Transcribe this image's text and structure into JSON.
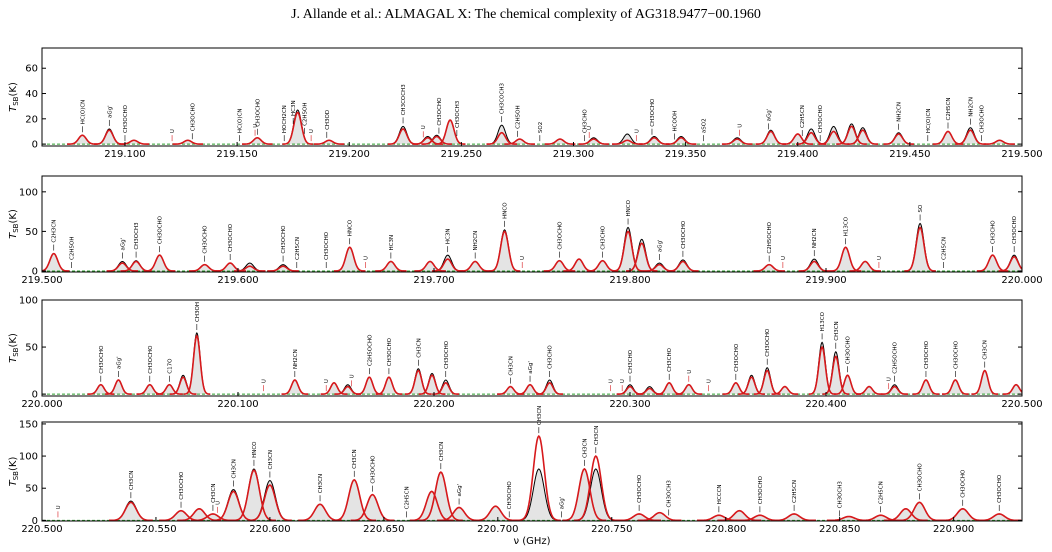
{
  "header": {
    "title": "J. Allande et al.: ALMAGAL X: The chemical complexity of AG318.9477−00.1960"
  },
  "chart_data": [
    {
      "type": "spectrum",
      "ylabel": {
        "symbol": "T",
        "subscript": "SB",
        "unit": "(K)"
      },
      "xlim": [
        219.063,
        219.5
      ],
      "ylim": [
        -1.5,
        76
      ],
      "yticks": [
        0,
        20,
        40,
        60
      ],
      "xticks": [
        {
          "value": 219.1,
          "label": "219.100"
        },
        {
          "value": 219.15,
          "label": "219.150"
        },
        {
          "value": 219.2,
          "label": "219.200"
        },
        {
          "value": 219.25,
          "label": "219.250"
        },
        {
          "value": 219.3,
          "label": "219.300"
        },
        {
          "value": 219.35,
          "label": "219.350"
        },
        {
          "value": 219.4,
          "label": "219.400"
        },
        {
          "value": 219.45,
          "label": "219.450"
        },
        {
          "value": 219.5,
          "label": "219.500"
        }
      ],
      "fill": "#e4e4e4",
      "baseline_color": "#2ca02c",
      "x": [
        219.081,
        219.093,
        219.104,
        219.128,
        219.159,
        219.177,
        219.191,
        219.224,
        219.235,
        219.239,
        219.245,
        219.268,
        219.276,
        219.294,
        219.309,
        219.324,
        219.336,
        219.348,
        219.373,
        219.388,
        219.4,
        219.406,
        219.416,
        219.424,
        219.429,
        219.445,
        219.467,
        219.477,
        219.49
      ],
      "series": [
        {
          "color": "#000000",
          "values": [
            7,
            12,
            3,
            3,
            5,
            27,
            3,
            14,
            6,
            7,
            19,
            15,
            4,
            4,
            5,
            8,
            6,
            6,
            5,
            11,
            8,
            12,
            14,
            16,
            13,
            9,
            10,
            13,
            3
          ]
        },
        {
          "color": "#d7191c",
          "values": [
            7,
            11,
            3,
            3,
            5,
            25,
            3,
            12,
            5,
            6,
            19,
            9,
            4,
            4,
            4,
            3,
            5,
            5,
            4,
            10,
            8,
            9,
            10,
            14,
            11,
            8,
            10,
            11,
            3
          ]
        }
      ],
      "annotations": [
        {
          "x": 219.081,
          "text": "HC(O)CN"
        },
        {
          "x": 219.093,
          "text": "aGg'"
        },
        {
          "x": 219.1,
          "text": "CH3OCHO"
        },
        {
          "x": 219.13,
          "text": "CH3OCHO"
        },
        {
          "x": 219.151,
          "text": "HC(O)CN"
        },
        {
          "x": 219.159,
          "text": "CH3OCHO"
        },
        {
          "x": 219.171,
          "text": "HOCH2CN"
        },
        {
          "x": 219.175,
          "text": "HC3N"
        },
        {
          "x": 219.18,
          "text": "C2H5OH"
        },
        {
          "x": 219.19,
          "text": "CH3OD"
        },
        {
          "x": 219.224,
          "text": "CH3COCH3"
        },
        {
          "x": 219.24,
          "text": "CH3OCHO"
        },
        {
          "x": 219.248,
          "text": "CH3OCH3"
        },
        {
          "x": 219.268,
          "text": "CH3COCH3"
        },
        {
          "x": 219.275,
          "text": "C2H5OH"
        },
        {
          "x": 219.285,
          "text": "SO2"
        },
        {
          "x": 219.305,
          "text": "CH3CHO"
        },
        {
          "x": 219.335,
          "text": "CH3OCHO"
        },
        {
          "x": 219.345,
          "text": "HCOOH"
        },
        {
          "x": 219.358,
          "text": "aSO2"
        },
        {
          "x": 219.387,
          "text": "aGg'"
        },
        {
          "x": 219.402,
          "text": "C2H5CN"
        },
        {
          "x": 219.41,
          "text": "CH3OCHO"
        },
        {
          "x": 219.445,
          "text": "NH2CN"
        },
        {
          "x": 219.458,
          "text": "HC(O)CN"
        },
        {
          "x": 219.467,
          "text": "C2H5CN"
        },
        {
          "x": 219.477,
          "text": "NH2CN"
        },
        {
          "x": 219.482,
          "text": "CH3OCHO"
        }
      ],
      "u_marks": [
        {
          "x": 219.121,
          "text": "U"
        },
        {
          "x": 219.158,
          "text": "U"
        },
        {
          "x": 219.183,
          "text": "U"
        },
        {
          "x": 219.233,
          "text": "U"
        },
        {
          "x": 219.307,
          "text": "U"
        },
        {
          "x": 219.328,
          "text": "U"
        },
        {
          "x": 219.374,
          "text": "U"
        }
      ]
    },
    {
      "type": "spectrum",
      "ylabel": {
        "symbol": "T",
        "subscript": "SB",
        "unit": "(K)"
      },
      "xlim": [
        219.5,
        220.0
      ],
      "ylim": [
        -1.3,
        120
      ],
      "yticks": [
        0,
        50,
        100
      ],
      "xticks": [
        {
          "value": 219.5,
          "label": "219.500"
        },
        {
          "value": 219.6,
          "label": "219.600"
        },
        {
          "value": 219.7,
          "label": "219.700"
        },
        {
          "value": 219.8,
          "label": "219.800"
        },
        {
          "value": 219.9,
          "label": "219.900"
        },
        {
          "value": 220.0,
          "label": "220.000"
        }
      ],
      "fill": "#e4e4e4",
      "baseline_color": "#2ca02c",
      "x": [
        219.506,
        219.541,
        219.548,
        219.56,
        219.583,
        219.596,
        219.606,
        219.623,
        219.657,
        219.678,
        219.698,
        219.707,
        219.721,
        219.736,
        219.764,
        219.774,
        219.786,
        219.799,
        219.806,
        219.815,
        219.827,
        219.871,
        219.894,
        219.91,
        219.92,
        219.948,
        219.985,
        219.996
      ],
      "series": [
        {
          "color": "#000000",
          "values": [
            22,
            12,
            13,
            20,
            8,
            10,
            10,
            8,
            30,
            12,
            12,
            20,
            12,
            52,
            13,
            15,
            13,
            55,
            40,
            10,
            14,
            8,
            15,
            30,
            12,
            60,
            20,
            20
          ]
        },
        {
          "color": "#d7191c",
          "values": [
            22,
            10,
            12,
            20,
            8,
            10,
            6,
            6,
            30,
            12,
            12,
            15,
            12,
            50,
            13,
            15,
            13,
            50,
            35,
            8,
            12,
            8,
            12,
            30,
            12,
            55,
            20,
            18
          ]
        }
      ],
      "annotations": [
        {
          "x": 219.506,
          "text": "C2H3CN"
        },
        {
          "x": 219.515,
          "text": "C2H5OH"
        },
        {
          "x": 219.541,
          "text": "aGg'"
        },
        {
          "x": 219.548,
          "text": "CH3OCH3"
        },
        {
          "x": 219.56,
          "text": "CH3OCHO"
        },
        {
          "x": 219.583,
          "text": "CH3OCHO"
        },
        {
          "x": 219.596,
          "text": "CH3OCHO"
        },
        {
          "x": 219.623,
          "text": "CH3OCHO"
        },
        {
          "x": 219.63,
          "text": "C2H5CN"
        },
        {
          "x": 219.645,
          "text": "CH3OCHO"
        },
        {
          "x": 219.657,
          "text": "HNCO"
        },
        {
          "x": 219.678,
          "text": "HC3N"
        },
        {
          "x": 219.707,
          "text": "HC3N"
        },
        {
          "x": 219.721,
          "text": "NH2CN"
        },
        {
          "x": 219.736,
          "text": "HNCO"
        },
        {
          "x": 219.764,
          "text": "CH3OCHO"
        },
        {
          "x": 219.786,
          "text": "CH3CHO"
        },
        {
          "x": 219.799,
          "text": "HNCO"
        },
        {
          "x": 219.815,
          "text": "aGg'"
        },
        {
          "x": 219.827,
          "text": "CH3OCHO"
        },
        {
          "x": 219.871,
          "text": "C2H5OCHO"
        },
        {
          "x": 219.894,
          "text": "NH2CN"
        },
        {
          "x": 219.91,
          "text": "H13CO"
        },
        {
          "x": 219.948,
          "text": "SO"
        },
        {
          "x": 219.96,
          "text": "C2H5CN"
        },
        {
          "x": 219.985,
          "text": "CH3CHO"
        },
        {
          "x": 219.996,
          "text": "CH3OCHO"
        }
      ],
      "u_marks": [
        {
          "x": 219.665,
          "text": "U"
        },
        {
          "x": 219.745,
          "text": "U"
        },
        {
          "x": 219.878,
          "text": "U"
        },
        {
          "x": 219.927,
          "text": "U"
        }
      ]
    },
    {
      "type": "spectrum",
      "ylabel": {
        "symbol": "T",
        "subscript": "SB",
        "unit": "(K)"
      },
      "xlim": [
        220.0,
        220.5
      ],
      "ylim": [
        -2,
        100
      ],
      "yticks": [
        0,
        50,
        100
      ],
      "xticks": [
        {
          "value": 220.0,
          "label": "220.000"
        },
        {
          "value": 220.1,
          "label": "220.100"
        },
        {
          "value": 220.2,
          "label": "220.200"
        },
        {
          "value": 220.3,
          "label": "220.300"
        },
        {
          "value": 220.4,
          "label": "220.400"
        },
        {
          "value": 220.5,
          "label": "220.500"
        }
      ],
      "fill": "#e4e4e4",
      "baseline_color": "#2ca02c",
      "x": [
        220.03,
        220.039,
        220.055,
        220.065,
        220.072,
        220.079,
        220.129,
        220.149,
        220.156,
        220.167,
        220.177,
        220.192,
        220.199,
        220.206,
        220.239,
        220.249,
        220.259,
        220.3,
        220.31,
        220.32,
        220.33,
        220.354,
        220.362,
        220.37,
        220.379,
        220.398,
        220.405,
        220.411,
        220.422,
        220.435,
        220.451,
        220.466,
        220.481,
        220.497
      ],
      "series": [
        {
          "color": "#000000",
          "values": [
            10,
            15,
            10,
            10,
            20,
            65,
            15,
            12,
            10,
            18,
            18,
            27,
            22,
            15,
            8,
            10,
            15,
            10,
            8,
            12,
            10,
            12,
            20,
            28,
            8,
            55,
            45,
            20,
            8,
            10,
            15,
            15,
            25,
            10
          ]
        },
        {
          "color": "#d7191c",
          "values": [
            10,
            15,
            10,
            10,
            18,
            62,
            15,
            12,
            8,
            18,
            18,
            25,
            20,
            12,
            8,
            10,
            12,
            8,
            6,
            12,
            10,
            12,
            18,
            25,
            8,
            50,
            40,
            20,
            8,
            8,
            15,
            15,
            25,
            10
          ]
        }
      ],
      "annotations": [
        {
          "x": 220.03,
          "text": "CH3OCHO"
        },
        {
          "x": 220.039,
          "text": "aGg'"
        },
        {
          "x": 220.055,
          "text": "CH3OCHO"
        },
        {
          "x": 220.065,
          "text": "C17O"
        },
        {
          "x": 220.079,
          "text": "CH3OH"
        },
        {
          "x": 220.129,
          "text": "NH2CN"
        },
        {
          "x": 220.167,
          "text": "C2H5OCHO"
        },
        {
          "x": 220.177,
          "text": "CH3OCHO"
        },
        {
          "x": 220.192,
          "text": "CH3CN"
        },
        {
          "x": 220.206,
          "text": "CH3OCHO"
        },
        {
          "x": 220.239,
          "text": "CH3CN"
        },
        {
          "x": 220.249,
          "text": "aGg'"
        },
        {
          "x": 220.259,
          "text": "CH3CHO"
        },
        {
          "x": 220.3,
          "text": "CH3CHO"
        },
        {
          "x": 220.32,
          "text": "CH3CHO"
        },
        {
          "x": 220.354,
          "text": "CH3OCHO"
        },
        {
          "x": 220.37,
          "text": "CH3OCHO"
        },
        {
          "x": 220.398,
          "text": "H13CO"
        },
        {
          "x": 220.405,
          "text": "CH3CN"
        },
        {
          "x": 220.411,
          "text": "CH3OCHO"
        },
        {
          "x": 220.435,
          "text": "C2H5OCHO"
        },
        {
          "x": 220.451,
          "text": "CH3OCHO"
        },
        {
          "x": 220.466,
          "text": "CH3OCHO"
        },
        {
          "x": 220.481,
          "text": "CH3CN"
        }
      ],
      "u_marks": [
        {
          "x": 220.113,
          "text": "U"
        },
        {
          "x": 220.145,
          "text": "U"
        },
        {
          "x": 220.158,
          "text": "U"
        },
        {
          "x": 220.29,
          "text": "U"
        },
        {
          "x": 220.296,
          "text": "U"
        },
        {
          "x": 220.33,
          "text": "U"
        },
        {
          "x": 220.34,
          "text": "U"
        },
        {
          "x": 220.432,
          "text": "U"
        }
      ]
    },
    {
      "type": "spectrum",
      "ylabel": {
        "symbol": "T",
        "subscript": "SB",
        "unit": "(K)"
      },
      "xlabel": "ν (GHz)",
      "xlim": [
        220.5,
        220.93
      ],
      "ylim": [
        -1,
        153
      ],
      "yticks": [
        0,
        50,
        100,
        150
      ],
      "xticks": [
        {
          "value": 220.5,
          "label": "220.500"
        },
        {
          "value": 220.55,
          "label": "220.550"
        },
        {
          "value": 220.6,
          "label": "220.600"
        },
        {
          "value": 220.65,
          "label": "220.650"
        },
        {
          "value": 220.7,
          "label": "220.700"
        },
        {
          "value": 220.75,
          "label": "220.750"
        },
        {
          "value": 220.8,
          "label": "220.800"
        },
        {
          "value": 220.85,
          "label": "220.850"
        },
        {
          "value": 220.9,
          "label": "220.900"
        }
      ],
      "fill": "#e4e4e4",
      "baseline_color": "#2ca02c",
      "x": [
        220.539,
        220.561,
        220.569,
        220.575,
        220.584,
        220.593,
        220.6,
        220.622,
        220.637,
        220.645,
        220.671,
        220.675,
        220.683,
        220.699,
        220.718,
        220.738,
        220.743,
        220.762,
        220.771,
        220.797,
        220.806,
        220.815,
        220.83,
        220.854,
        220.868,
        220.879,
        220.885,
        220.904,
        220.92
      ],
      "series": [
        {
          "color": "#000000",
          "values": [
            30,
            15,
            18,
            10,
            48,
            80,
            62,
            25,
            63,
            40,
            45,
            75,
            20,
            22,
            80,
            80,
            80,
            10,
            12,
            8,
            15,
            8,
            10,
            6,
            8,
            18,
            28,
            18,
            10
          ]
        },
        {
          "color": "#d7191c",
          "values": [
            28,
            15,
            18,
            10,
            45,
            78,
            55,
            25,
            63,
            40,
            45,
            75,
            20,
            22,
            131,
            80,
            100,
            10,
            12,
            8,
            15,
            8,
            10,
            6,
            8,
            18,
            28,
            18,
            10
          ]
        }
      ],
      "annotations": [
        {
          "x": 220.539,
          "text": "CH3CN"
        },
        {
          "x": 220.561,
          "text": "CH3OCHO"
        },
        {
          "x": 220.575,
          "text": "CH3CN"
        },
        {
          "x": 220.584,
          "text": "CH3CN"
        },
        {
          "x": 220.593,
          "text": "HNCO"
        },
        {
          "x": 220.6,
          "text": "CH3CN"
        },
        {
          "x": 220.622,
          "text": "CH3CN"
        },
        {
          "x": 220.637,
          "text": "CH3CN"
        },
        {
          "x": 220.645,
          "text": "CH3OCHO"
        },
        {
          "x": 220.66,
          "text": "C2H5CN"
        },
        {
          "x": 220.675,
          "text": "CH3CN"
        },
        {
          "x": 220.683,
          "text": "aGg'"
        },
        {
          "x": 220.705,
          "text": "CH3OCHO"
        },
        {
          "x": 220.718,
          "text": "CH3CN"
        },
        {
          "x": 220.728,
          "text": "aGg'"
        },
        {
          "x": 220.738,
          "text": "CH3CN"
        },
        {
          "x": 220.743,
          "text": "CH3CN"
        },
        {
          "x": 220.762,
          "text": "CH3OCHO"
        },
        {
          "x": 220.775,
          "text": "CH3OCH3"
        },
        {
          "x": 220.797,
          "text": "HCCCN"
        },
        {
          "x": 220.815,
          "text": "CH3OCHO"
        },
        {
          "x": 220.83,
          "text": "C2H5CN"
        },
        {
          "x": 220.85,
          "text": "CH3OCH3"
        },
        {
          "x": 220.868,
          "text": "C2H5CN"
        },
        {
          "x": 220.885,
          "text": "CH3OCHO"
        },
        {
          "x": 220.904,
          "text": "CH3OCHO"
        },
        {
          "x": 220.92,
          "text": "CH3OCHO"
        }
      ],
      "u_marks": [
        {
          "x": 220.507,
          "text": "U"
        },
        {
          "x": 220.577,
          "text": "U"
        }
      ]
    }
  ]
}
